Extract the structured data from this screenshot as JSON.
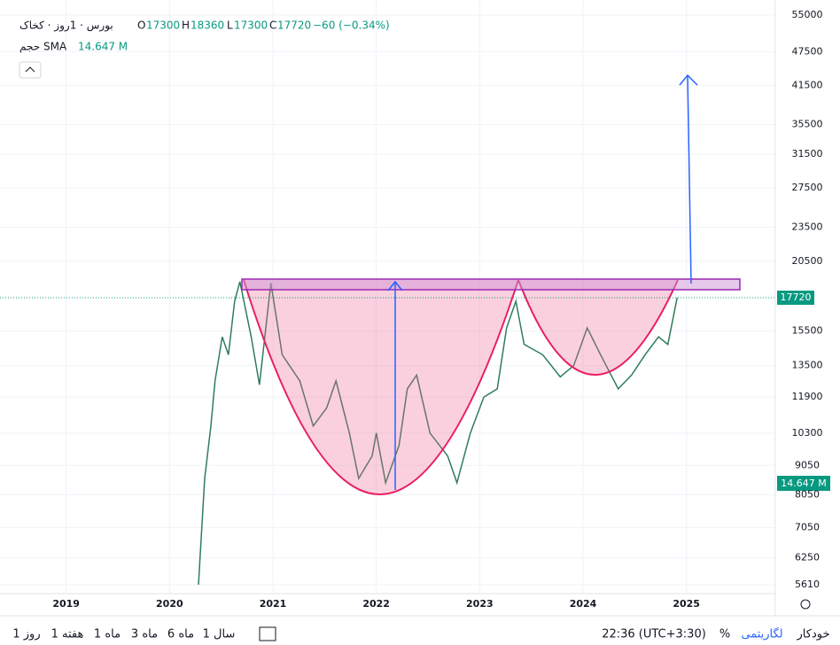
{
  "chart_data": {
    "type": "line",
    "title": "بورس · 1روز · کخاک",
    "ohlc": {
      "open_label": "O",
      "open": 17300,
      "high_label": "H",
      "high": 18360,
      "low_label": "L",
      "low": 17300,
      "close_label": "C",
      "close": 17720,
      "change": "−60 (−0.34%)"
    },
    "volume_indicator": {
      "name": "حجم SMA",
      "value_label": "14.647 M"
    },
    "color": "#2e7d5b",
    "last_price_color": "#089981",
    "log_scale": true,
    "x": [
      2020.28,
      2020.34,
      2020.4,
      2020.44,
      2020.51,
      2020.57,
      2020.63,
      2020.68,
      2020.79,
      2020.87,
      2020.98,
      2021.09,
      2021.26,
      2021.39,
      2021.52,
      2021.61,
      2021.74,
      2021.83,
      2021.96,
      2022.0,
      2022.09,
      2022.22,
      2022.3,
      2022.39,
      2022.52,
      2022.69,
      2022.78,
      2022.91,
      2023.04,
      2023.17,
      2023.26,
      2023.35,
      2023.43,
      2023.61,
      2023.78,
      2023.91,
      2024.04,
      2024.17,
      2024.34,
      2024.47,
      2024.6,
      2024.73,
      2024.82,
      2024.91
    ],
    "values": [
      5610,
      8590,
      10600,
      12700,
      15150,
      14100,
      17470,
      18900,
      15150,
      12500,
      18800,
      14100,
      12700,
      10600,
      11400,
      12700,
      10300,
      8590,
      9400,
      10300,
      8440,
      9800,
      12300,
      13000,
      10300,
      9400,
      8440,
      10300,
      11900,
      12300,
      15700,
      17470,
      14700,
      14100,
      12900,
      13500,
      15700,
      14100,
      12300,
      13000,
      14100,
      15150,
      14700,
      17720
    ],
    "xlim": [
      2018.36,
      2025.86
    ],
    "xticks": [
      2019,
      2020,
      2021,
      2022,
      2023,
      2024,
      2025
    ],
    "ylim": [
      5414,
      56385
    ],
    "yticks": [
      55000,
      47500,
      41500,
      35500,
      31500,
      27500,
      23500,
      20500,
      15500,
      13500,
      11900,
      10300,
      9050,
      8050,
      7050,
      6250,
      5610
    ]
  },
  "toolbar": {
    "ranges": [
      "1 روز",
      "1 هفته",
      "1 ماه",
      "3 ماه",
      "6 ماه",
      "1 سال"
    ],
    "time": "22:36 (UTC+3:30)",
    "percent": "%",
    "log": "لگاریتمی",
    "auto": "خودکار"
  }
}
